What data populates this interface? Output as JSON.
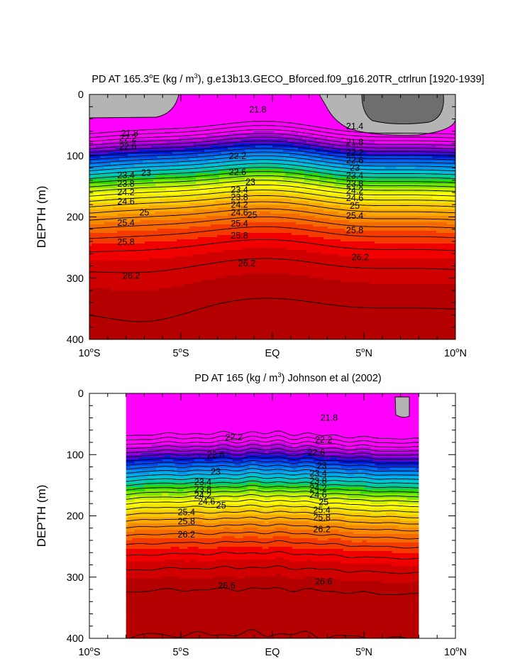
{
  "chart_data": [
    {
      "type": "contour",
      "id": "top",
      "title_parts": [
        "PD AT 165.3",
        "o",
        "E (kg / m",
        "3",
        "), g.e13b13.GECO_Bforced.f09_g16.20TR_ctrlrun [1920-1939]"
      ],
      "ylabel": "DEPTH (m)",
      "xlim": [
        -10,
        10
      ],
      "ylim": [
        400,
        0
      ],
      "x_ticks": [
        {
          "v": -10,
          "num": "10",
          "deg": "o",
          "hemi": "S"
        },
        {
          "v": -5,
          "num": "5",
          "deg": "o",
          "hemi": "S"
        },
        {
          "v": 0,
          "num": "EQ",
          "deg": "",
          "hemi": ""
        },
        {
          "v": 5,
          "num": "5",
          "deg": "o",
          "hemi": "N"
        },
        {
          "v": 10,
          "num": "10",
          "deg": "o",
          "hemi": "N"
        }
      ],
      "y_ticks": [
        "0",
        "100",
        "200",
        "300",
        "400"
      ],
      "y_tick_values": [
        0,
        100,
        200,
        300,
        400
      ],
      "data_extent": [
        -10,
        10
      ],
      "contour_interval": 0.2,
      "contour_labels": [
        {
          "text": "21.8",
          "x": -0.8,
          "y": 25
        },
        {
          "text": "21.4",
          "x": 4.5,
          "y": 52
        },
        {
          "text": "21.8",
          "x": -7.8,
          "y": 64
        },
        {
          "text": "22.2",
          "x": -7.9,
          "y": 72
        },
        {
          "text": "22.6",
          "x": -7.9,
          "y": 85
        },
        {
          "text": "21.8",
          "x": 4.5,
          "y": 78
        },
        {
          "text": "22.2",
          "x": 4.5,
          "y": 95
        },
        {
          "text": "22.6",
          "x": 4.5,
          "y": 108
        },
        {
          "text": "22.2",
          "x": -1.9,
          "y": 101
        },
        {
          "text": "22.6",
          "x": -1.9,
          "y": 127
        },
        {
          "text": "23",
          "x": -6.9,
          "y": 128
        },
        {
          "text": "23",
          "x": -1.2,
          "y": 143
        },
        {
          "text": "23",
          "x": 4.5,
          "y": 120
        },
        {
          "text": "23.4",
          "x": -8.0,
          "y": 132
        },
        {
          "text": "23.8",
          "x": -8.0,
          "y": 146
        },
        {
          "text": "24.2",
          "x": -8.0,
          "y": 160
        },
        {
          "text": "24.6",
          "x": -8.0,
          "y": 175
        },
        {
          "text": "23.4",
          "x": -1.8,
          "y": 156
        },
        {
          "text": "23.8",
          "x": -1.8,
          "y": 168
        },
        {
          "text": "24.2",
          "x": -1.8,
          "y": 180
        },
        {
          "text": "24.6",
          "x": -1.8,
          "y": 193
        },
        {
          "text": "23.4",
          "x": 4.5,
          "y": 133
        },
        {
          "text": "23.8",
          "x": 4.5,
          "y": 146
        },
        {
          "text": "24.2",
          "x": 4.5,
          "y": 157
        },
        {
          "text": "24.6",
          "x": 4.5,
          "y": 169
        },
        {
          "text": "25",
          "x": 4.5,
          "y": 182
        },
        {
          "text": "25",
          "x": -7.0,
          "y": 193
        },
        {
          "text": "25",
          "x": -1.1,
          "y": 197
        },
        {
          "text": "25.4",
          "x": 4.5,
          "y": 198
        },
        {
          "text": "25.4",
          "x": -8.0,
          "y": 210
        },
        {
          "text": "25.4",
          "x": -1.8,
          "y": 211
        },
        {
          "text": "25.8",
          "x": 4.5,
          "y": 222
        },
        {
          "text": "25.8",
          "x": -8.0,
          "y": 241
        },
        {
          "text": "25.8",
          "x": -1.8,
          "y": 231
        },
        {
          "text": "26.2",
          "x": 4.8,
          "y": 266
        },
        {
          "text": "26.2",
          "x": -7.7,
          "y": 296
        },
        {
          "text": "26.2",
          "x": -1.4,
          "y": 276
        }
      ]
    },
    {
      "type": "contour",
      "id": "bottom",
      "title_parts": [
        "PD AT 165 (kg / m",
        "3",
        ") Johnson et al (2002)"
      ],
      "ylabel": "DEPTH (m)",
      "xlim": [
        -10,
        10
      ],
      "ylim": [
        400,
        0
      ],
      "x_ticks": [
        {
          "v": -10,
          "num": "10",
          "deg": "o",
          "hemi": "S"
        },
        {
          "v": -5,
          "num": "5",
          "deg": "o",
          "hemi": "S"
        },
        {
          "v": 0,
          "num": "EQ",
          "deg": "",
          "hemi": ""
        },
        {
          "v": 5,
          "num": "5",
          "deg": "o",
          "hemi": "N"
        },
        {
          "v": 10,
          "num": "10",
          "deg": "o",
          "hemi": "N"
        }
      ],
      "y_ticks": [
        "0",
        "100",
        "200",
        "300",
        "400"
      ],
      "y_tick_values": [
        0,
        100,
        200,
        300,
        400
      ],
      "data_extent": [
        -8,
        8
      ],
      "contour_interval": 0.2,
      "contour_labels": [
        {
          "text": "21.8",
          "x": 3.1,
          "y": 40
        },
        {
          "text": "22.2",
          "x": -2.1,
          "y": 72
        },
        {
          "text": "22.2",
          "x": 2.8,
          "y": 76
        },
        {
          "text": "22.6",
          "x": -3.1,
          "y": 100
        },
        {
          "text": "22.6",
          "x": 2.4,
          "y": 97
        },
        {
          "text": "23",
          "x": -3.1,
          "y": 128
        },
        {
          "text": "23",
          "x": 2.7,
          "y": 118
        },
        {
          "text": "23.4",
          "x": 2.5,
          "y": 131
        },
        {
          "text": "23.8",
          "x": 2.5,
          "y": 143
        },
        {
          "text": "24.2",
          "x": 2.5,
          "y": 155
        },
        {
          "text": "24.6",
          "x": 2.5,
          "y": 166
        },
        {
          "text": "25",
          "x": 2.8,
          "y": 178
        },
        {
          "text": "25.4",
          "x": 2.7,
          "y": 191
        },
        {
          "text": "25.8",
          "x": 2.7,
          "y": 203
        },
        {
          "text": "26.2",
          "x": 2.7,
          "y": 222
        },
        {
          "text": "23.4",
          "x": -3.8,
          "y": 145
        },
        {
          "text": "23.8",
          "x": -3.8,
          "y": 157
        },
        {
          "text": "24.2",
          "x": -3.8,
          "y": 167
        },
        {
          "text": "24.6",
          "x": -3.6,
          "y": 177
        },
        {
          "text": "25",
          "x": -2.8,
          "y": 183
        },
        {
          "text": "25.4",
          "x": -4.7,
          "y": 194
        },
        {
          "text": "25.8",
          "x": -4.7,
          "y": 209
        },
        {
          "text": "26.2",
          "x": -4.7,
          "y": 231
        },
        {
          "text": "26.6",
          "x": -2.5,
          "y": 314
        },
        {
          "text": "26.6",
          "x": 2.8,
          "y": 307
        }
      ]
    }
  ],
  "palette": [
    "#b50000",
    "#d00000",
    "#f00000",
    "#f53a00",
    "#f56a00",
    "#f58a00",
    "#f8a800",
    "#f8c800",
    "#f0e400",
    "#ffff00",
    "#c8f000",
    "#80e800",
    "#30d800",
    "#00cc88",
    "#00c8c8",
    "#00b4e8",
    "#0096f0",
    "#0070f0",
    "#0046f0",
    "#0018d8",
    "#5a00d2",
    "#9a00d8",
    "#c800e8",
    "#ff00ff"
  ],
  "gray_light": "#b4b4b4",
  "gray_dark": "#6e6e6e"
}
